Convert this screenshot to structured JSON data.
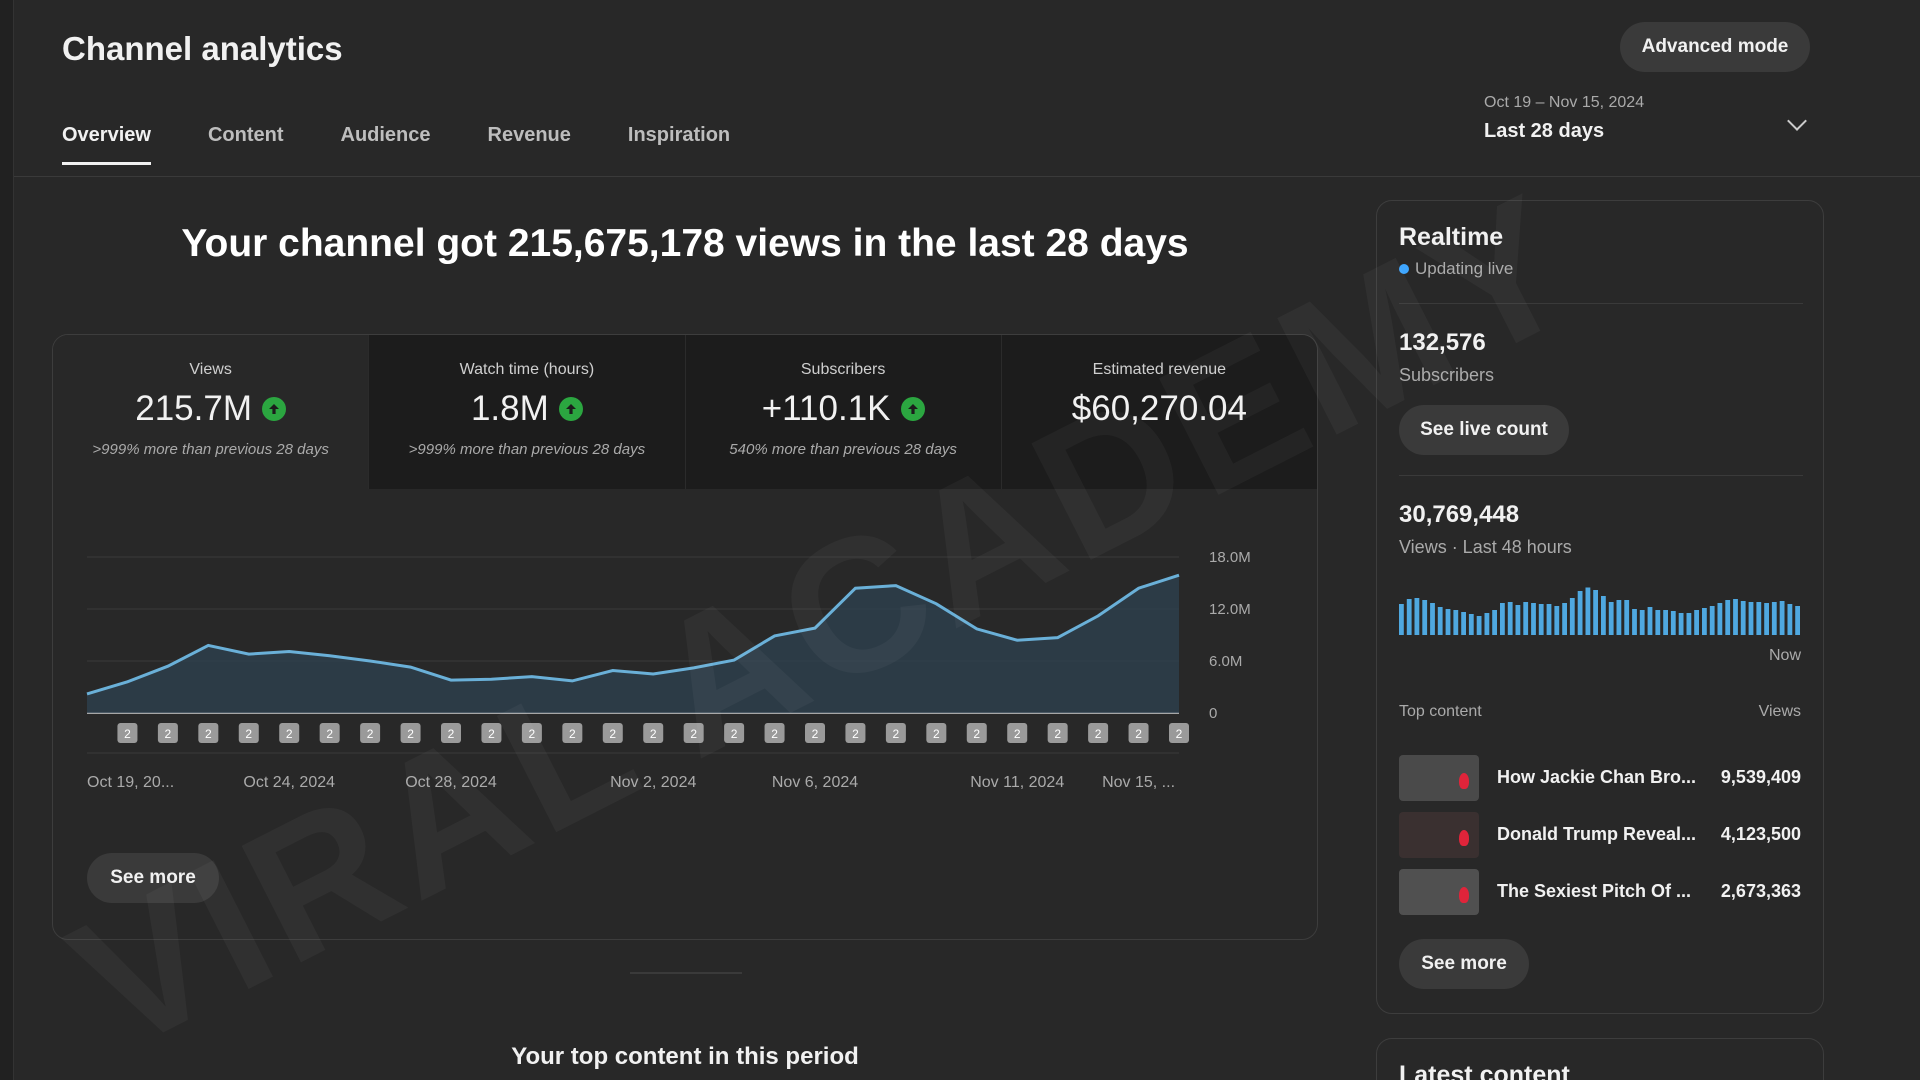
{
  "page": {
    "title": "Channel analytics",
    "advanced_mode_label": "Advanced mode",
    "watermark": "VIRAL ACADEMY"
  },
  "tabs": [
    {
      "label": "Overview",
      "active": true
    },
    {
      "label": "Content",
      "active": false
    },
    {
      "label": "Audience",
      "active": false
    },
    {
      "label": "Revenue",
      "active": false
    },
    {
      "label": "Inspiration",
      "active": false
    }
  ],
  "date_picker": {
    "range": "Oct 19 – Nov 15, 2024",
    "label": "Last 28 days"
  },
  "headline": "Your channel got 215,675,178 views in the last 28 days",
  "metrics": [
    {
      "label": "Views",
      "value": "215.7M",
      "trend_icon": "arrow-up-icon",
      "note": ">999% more than previous 28 days"
    },
    {
      "label": "Watch time (hours)",
      "value": "1.8M",
      "trend_icon": "arrow-up-icon",
      "note": ">999% more than previous 28 days"
    },
    {
      "label": "Subscribers",
      "value": "+110.1K",
      "trend_icon": "arrow-up-icon",
      "note": "540% more than previous 28 days"
    },
    {
      "label": "Estimated revenue",
      "value": "$60,270.04",
      "trend_icon": null,
      "note": ""
    }
  ],
  "main_chart": {
    "see_more_label": "See more",
    "marker_label": "2"
  },
  "chart_data": {
    "type": "area",
    "title": "",
    "xlabel": "",
    "ylabel": "",
    "ylim": [
      0,
      18000000
    ],
    "y_ticks": [
      "18.0M",
      "12.0M",
      "6.0M",
      "0"
    ],
    "x_tick_labels": [
      "Oct 19, 20...",
      "Oct 24, 2024",
      "Oct 28, 2024",
      "Nov 2, 2024",
      "Nov 6, 2024",
      "Nov 11, 2024",
      "Nov 15, ..."
    ],
    "x_tick_indices": [
      0,
      5,
      9,
      14,
      18,
      23,
      26
    ],
    "grid": true,
    "series": [
      {
        "color": "#6ab0d8",
        "values": [
          2200000,
          3600000,
          5400000,
          7800000,
          6800000,
          7100000,
          6600000,
          6000000,
          5300000,
          3800000,
          3900000,
          4200000,
          3700000,
          4900000,
          4500000,
          5200000,
          6100000,
          8900000,
          9800000,
          14400000,
          14700000,
          12600000,
          9700000,
          8400000,
          8700000,
          11200000,
          14400000,
          15900000
        ]
      }
    ]
  },
  "realtime": {
    "title": "Realtime",
    "live_label": "Updating live",
    "subscribers_value": "132,576",
    "subscribers_label": "Subscribers",
    "live_count_label": "See live count",
    "views_value": "30,769,448",
    "views_label": "Views · Last 48 hours",
    "bars_color": "#4fa8e0",
    "bars": [
      0.62,
      0.72,
      0.74,
      0.7,
      0.64,
      0.56,
      0.52,
      0.5,
      0.46,
      0.42,
      0.38,
      0.44,
      0.5,
      0.64,
      0.66,
      0.6,
      0.66,
      0.64,
      0.62,
      0.62,
      0.58,
      0.64,
      0.74,
      0.88,
      0.95,
      0.9,
      0.78,
      0.66,
      0.7,
      0.7,
      0.52,
      0.5,
      0.56,
      0.5,
      0.5,
      0.48,
      0.44,
      0.44,
      0.5,
      0.54,
      0.58,
      0.64,
      0.7,
      0.72,
      0.68,
      0.66,
      0.66,
      0.64,
      0.66,
      0.68,
      0.62,
      0.58
    ],
    "now_label": "Now",
    "top_content_label": "Top content",
    "views_col_label": "Views",
    "top_content": [
      {
        "title": "How Jackie Chan Bro...",
        "views": "9,539,409",
        "thumb_color": "#4a4a4a"
      },
      {
        "title": "Donald Trump Reveal...",
        "views": "4,123,500",
        "thumb_color": "#3a3030"
      },
      {
        "title": "The Sexiest Pitch Of ...",
        "views": "2,673,363",
        "thumb_color": "#505050"
      }
    ],
    "see_more_label": "See more"
  },
  "top_content_section_title": "Your top content in this period",
  "latest_content_title": "Latest content"
}
